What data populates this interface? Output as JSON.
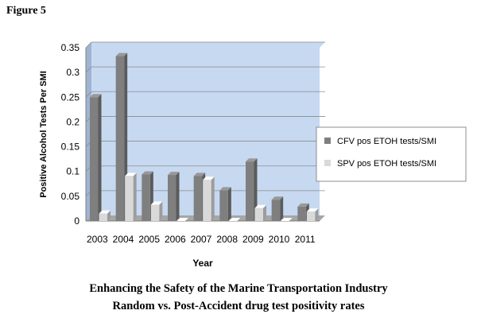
{
  "figure_label": "Figure 5",
  "caption": {
    "line1": "Enhancing the Safety of the Marine Transportation Industry",
    "line2": "Random vs. Post-Accident drug test positivity rates"
  },
  "chart_data": {
    "type": "bar",
    "title": "",
    "xlabel": "Year",
    "ylabel": "Positive Alcohol Tests Per SMI",
    "categories": [
      "2003",
      "2004",
      "2005",
      "2006",
      "2007",
      "2008",
      "2009",
      "2010",
      "2011"
    ],
    "series": [
      {
        "name": "CFV pos ETOH tests/SMI",
        "color": "#7f7f7f",
        "values": [
          0.25,
          0.333,
          0.094,
          0.093,
          0.091,
          0.062,
          0.12,
          0.043,
          0.029
        ]
      },
      {
        "name": "SPV pos ETOH tests/SMI",
        "color": "#d9d9d9",
        "values": [
          0.015,
          0.091,
          0.033,
          0.0,
          0.083,
          0.0,
          0.026,
          0.0,
          0.019
        ]
      }
    ],
    "ylim": [
      0,
      0.35
    ],
    "yticks": [
      "0",
      "0.05",
      "0.1",
      "0.15",
      "0.2",
      "0.25",
      "0.3",
      "0.35"
    ],
    "grid": true,
    "legend_position": "right",
    "plot_background": "#c6d9f1",
    "style": "3d-bars"
  }
}
